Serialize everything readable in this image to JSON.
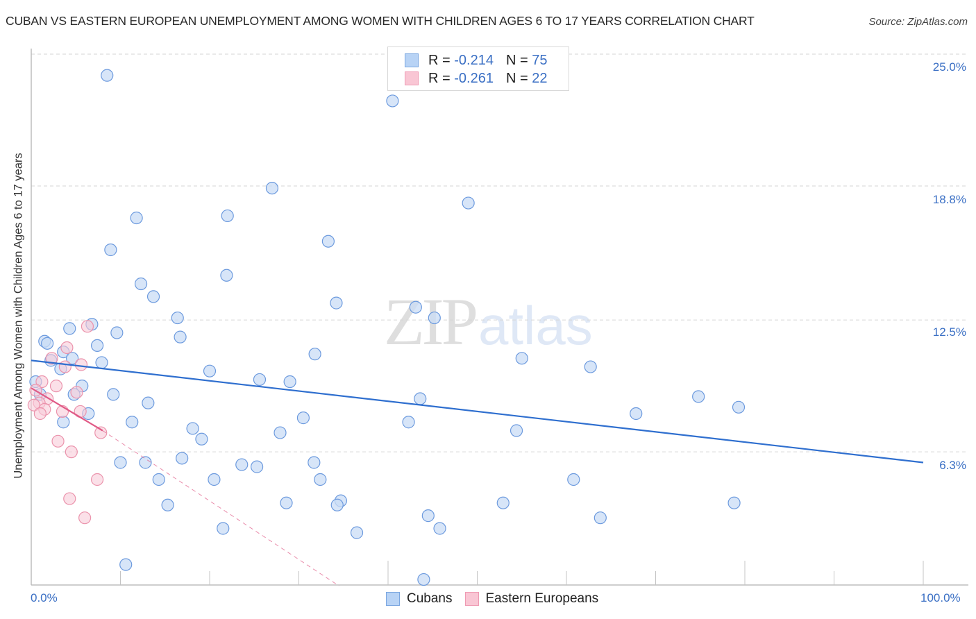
{
  "header": {
    "title": "CUBAN VS EASTERN EUROPEAN UNEMPLOYMENT AMONG WOMEN WITH CHILDREN AGES 6 TO 17 YEARS CORRELATION CHART",
    "source": "Source: ZipAtlas.com"
  },
  "watermark": {
    "zip": "ZIP",
    "atlas": "atlas"
  },
  "legend": {
    "rows": [
      {
        "r_label": "R =",
        "r_value": "-0.214",
        "n_label": "N =",
        "n_value": "75",
        "color": "#b8d3f5",
        "border": "#7aa6e0"
      },
      {
        "r_label": "R =",
        "r_value": "-0.261",
        "n_label": "N =",
        "n_value": "22",
        "color": "#f9c6d4",
        "border": "#ef9ab3"
      }
    ]
  },
  "axes": {
    "y_label": "Unemployment Among Women with Children Ages 6 to 17 years",
    "y_ticks": [
      "25.0%",
      "18.8%",
      "12.5%",
      "6.3%"
    ],
    "x_ticks": [
      "0.0%",
      "100.0%"
    ]
  },
  "bottom_legend": [
    {
      "label": "Cubans",
      "color": "#b8d3f5",
      "border": "#7aa6e0"
    },
    {
      "label": "Eastern Europeans",
      "color": "#f9c6d4",
      "border": "#ef9ab3"
    }
  ],
  "colors": {
    "cubans_fill": "#c9dcf5",
    "cubans_stroke": "#6c9ade",
    "cubans_trend": "#2f6fcf",
    "ee_fill": "#f9ccd8",
    "ee_stroke": "#eb93ac",
    "ee_trend": "#e05a86",
    "grid": "#d6d6d6",
    "tick_text": "#3a6fc4"
  },
  "chart_data": {
    "type": "scatter",
    "title": "CUBAN VS EASTERN EUROPEAN UNEMPLOYMENT AMONG WOMEN WITH CHILDREN AGES 6 TO 17 YEARS CORRELATION CHART",
    "xlabel": "",
    "ylabel": "Unemployment Among Women with Children Ages 6 to 17 years",
    "xlim": [
      0,
      100
    ],
    "ylim": [
      0,
      25.6
    ],
    "y_ticks": [
      6.3,
      12.5,
      18.8,
      25.0
    ],
    "x_ticks": [
      0,
      100
    ],
    "grid": true,
    "legend_position": "top-center",
    "series": [
      {
        "name": "Cubans",
        "R": -0.214,
        "N": 75,
        "trend": {
          "x": [
            0,
            100
          ],
          "y": [
            10.6,
            5.8
          ]
        },
        "points": [
          [
            8.5,
            24.0
          ],
          [
            40.5,
            22.8
          ],
          [
            27.0,
            18.7
          ],
          [
            49.0,
            18.0
          ],
          [
            11.8,
            17.3
          ],
          [
            22.0,
            17.4
          ],
          [
            8.9,
            15.8
          ],
          [
            33.3,
            16.2
          ],
          [
            12.3,
            14.2
          ],
          [
            21.9,
            14.6
          ],
          [
            13.7,
            13.6
          ],
          [
            34.2,
            13.3
          ],
          [
            43.1,
            13.1
          ],
          [
            16.4,
            12.6
          ],
          [
            45.2,
            12.6
          ],
          [
            4.3,
            12.1
          ],
          [
            6.8,
            12.3
          ],
          [
            9.6,
            11.9
          ],
          [
            16.7,
            11.7
          ],
          [
            1.5,
            11.5
          ],
          [
            1.8,
            11.4
          ],
          [
            7.4,
            11.3
          ],
          [
            3.6,
            11.0
          ],
          [
            31.8,
            10.9
          ],
          [
            4.6,
            10.7
          ],
          [
            2.2,
            10.6
          ],
          [
            7.9,
            10.5
          ],
          [
            55.0,
            10.7
          ],
          [
            62.7,
            10.3
          ],
          [
            3.3,
            10.2
          ],
          [
            20.0,
            10.1
          ],
          [
            0.5,
            9.6
          ],
          [
            25.6,
            9.7
          ],
          [
            29.0,
            9.6
          ],
          [
            5.7,
            9.4
          ],
          [
            1.0,
            9.0
          ],
          [
            4.8,
            9.0
          ],
          [
            9.2,
            9.0
          ],
          [
            74.8,
            8.9
          ],
          [
            43.6,
            8.8
          ],
          [
            13.1,
            8.6
          ],
          [
            79.3,
            8.4
          ],
          [
            6.4,
            8.1
          ],
          [
            67.8,
            8.1
          ],
          [
            30.5,
            7.9
          ],
          [
            3.6,
            7.7
          ],
          [
            11.3,
            7.7
          ],
          [
            42.3,
            7.7
          ],
          [
            18.1,
            7.4
          ],
          [
            27.9,
            7.2
          ],
          [
            54.4,
            7.3
          ],
          [
            19.1,
            6.9
          ],
          [
            16.9,
            6.0
          ],
          [
            10.0,
            5.8
          ],
          [
            12.8,
            5.8
          ],
          [
            23.6,
            5.7
          ],
          [
            25.3,
            5.6
          ],
          [
            31.7,
            5.8
          ],
          [
            14.3,
            5.0
          ],
          [
            20.5,
            5.0
          ],
          [
            32.4,
            5.0
          ],
          [
            60.8,
            5.0
          ],
          [
            15.3,
            3.8
          ],
          [
            28.6,
            3.9
          ],
          [
            34.7,
            4.0
          ],
          [
            34.3,
            3.8
          ],
          [
            52.9,
            3.9
          ],
          [
            78.8,
            3.9
          ],
          [
            44.5,
            3.3
          ],
          [
            63.8,
            3.2
          ],
          [
            21.5,
            2.7
          ],
          [
            36.5,
            2.5
          ],
          [
            45.8,
            2.7
          ],
          [
            10.6,
            1.0
          ],
          [
            44.0,
            0.3
          ]
        ]
      },
      {
        "name": "Eastern Europeans",
        "R": -0.261,
        "N": 22,
        "trend_solid": {
          "x": [
            0,
            8.0
          ],
          "y": [
            9.3,
            7.3
          ]
        },
        "trend_dashed": {
          "x": [
            8.0,
            34.5
          ],
          "y": [
            7.3,
            0.0
          ]
        },
        "points": [
          [
            6.3,
            12.2
          ],
          [
            4.0,
            11.2
          ],
          [
            2.3,
            10.7
          ],
          [
            5.6,
            10.4
          ],
          [
            3.8,
            10.3
          ],
          [
            1.2,
            9.6
          ],
          [
            2.8,
            9.4
          ],
          [
            0.5,
            9.2
          ],
          [
            1.8,
            8.8
          ],
          [
            5.1,
            9.1
          ],
          [
            0.9,
            8.6
          ],
          [
            0.3,
            8.5
          ],
          [
            1.5,
            8.3
          ],
          [
            1.0,
            8.1
          ],
          [
            3.5,
            8.2
          ],
          [
            5.5,
            8.2
          ],
          [
            7.8,
            7.2
          ],
          [
            3.0,
            6.8
          ],
          [
            4.5,
            6.3
          ],
          [
            7.4,
            5.0
          ],
          [
            4.3,
            4.1
          ],
          [
            6.0,
            3.2
          ]
        ]
      }
    ]
  }
}
